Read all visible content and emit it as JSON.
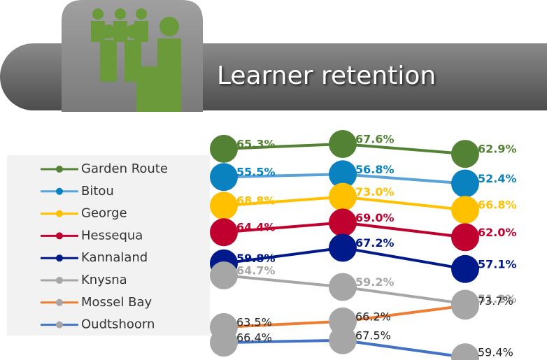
{
  "chart_data": {
    "type": "line",
    "title": "Learner retention",
    "categories": [
      null,
      null,
      null
    ],
    "series": [
      {
        "name": "Garden Route",
        "color": "#548235",
        "marker_color": "#548235",
        "label_color": "#548235",
        "values": [
          65.3,
          67.6,
          62.9
        ],
        "value_labels": [
          "65.3%",
          "67.6%",
          "62.9%"
        ]
      },
      {
        "name": "Bitou",
        "color": "#5aa3d9",
        "marker_color": "#0a82c0",
        "label_color": "#0a82c0",
        "values": [
          55.5,
          56.8,
          52.4
        ],
        "value_labels": [
          "55.5%",
          "56.8%",
          "52.4%"
        ]
      },
      {
        "name": "George",
        "color": "#ffc000",
        "marker_color": "#ffc000",
        "label_color": "#ffc000",
        "values": [
          68.8,
          73.0,
          66.8
        ],
        "value_labels": [
          "68.8%",
          "73.0%",
          "66.8%"
        ]
      },
      {
        "name": "Hessequa",
        "color": "#c0002e",
        "marker_color": "#c0002e",
        "label_color": "#c0002e",
        "values": [
          64.4,
          69.0,
          62.0
        ],
        "value_labels": [
          "64.4%",
          "69.0%",
          "62.0%"
        ]
      },
      {
        "name": "Kannaland",
        "color": "#001a8c",
        "marker_color": "#001a8c",
        "label_color": "#001a8c",
        "values": [
          59.8,
          67.2,
          57.1
        ],
        "value_labels": [
          "59.8%",
          "67.2%",
          "57.1%"
        ]
      },
      {
        "name": "Knysna",
        "color": "#a6a6a6",
        "marker_color": "#a6a6a6",
        "label_color": "#a6a6a6",
        "values": [
          64.7,
          59.2,
          51.2
        ],
        "value_labels": [
          "64.7%",
          "59.2%",
          "51.2%"
        ]
      },
      {
        "name": "Mossel Bay",
        "color": "#ed7d31",
        "marker_color": "#a6a6a6",
        "label_color": "#222222",
        "values": [
          63.5,
          66.2,
          73.7
        ],
        "value_labels": [
          "63.5%",
          "66.2%",
          "73.7%"
        ]
      },
      {
        "name": "Oudtshoorn",
        "color": "#4472c4",
        "marker_color": "#a6a6a6",
        "label_color": "#222222",
        "values": [
          66.4,
          67.5,
          59.4
        ],
        "value_labels": [
          "66.4%",
          "67.5%",
          "59.4%"
        ]
      }
    ]
  }
}
